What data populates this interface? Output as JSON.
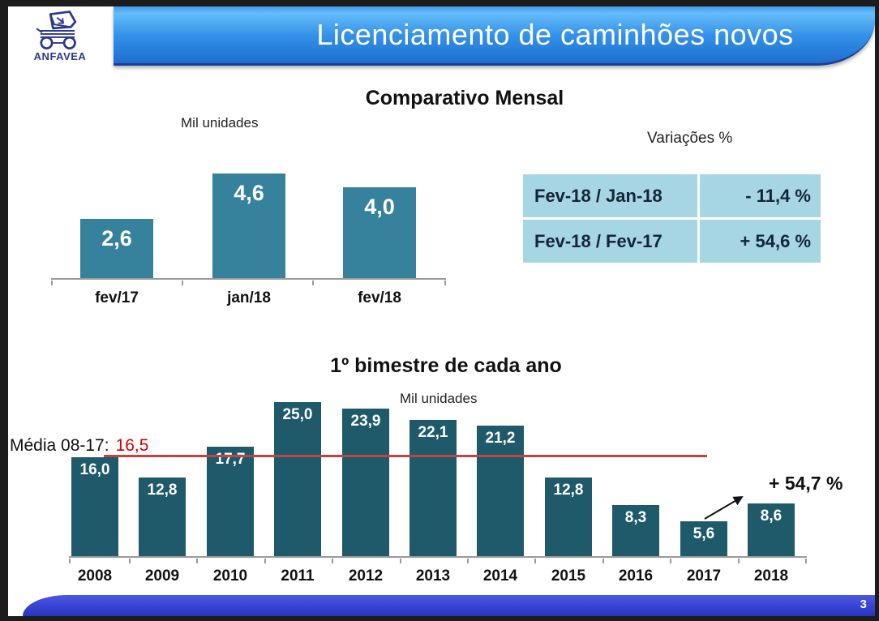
{
  "logo": {
    "name": "ANFAVEA"
  },
  "header": {
    "title": "Licenciamento de caminhões novos"
  },
  "monthly_section": {
    "title": "Comparativo Mensal",
    "units_label": "Mil unidades",
    "variations": {
      "title": "Variações %",
      "rows": [
        {
          "label": "Fev-18 / Jan-18",
          "value": "- 11,4 %"
        },
        {
          "label": "Fev-18 / Fev-17",
          "value": "+ 54,6 %"
        }
      ]
    }
  },
  "yearly_section": {
    "title": "1º bimestre de cada ano",
    "units_label": "Mil unidades",
    "average_label": "Média 08-17:",
    "average_value": "16,5",
    "growth_label": "+ 54,7 %"
  },
  "footer": {
    "page": "3"
  },
  "colors": {
    "header_blue": "#2E8AE4",
    "small_bar_teal": "#36829C",
    "big_bar_teal": "#1F5A6B",
    "table_cell_blue": "#A6D5E4",
    "average_line_red": "#C0443F",
    "average_value_red": "#CC0000",
    "footer_blue": "#3643D2"
  },
  "chart_data": [
    {
      "type": "bar",
      "title": "Comparativo Mensal",
      "ylabel": "Mil unidades",
      "categories": [
        "fev/17",
        "jan/18",
        "fev/18"
      ],
      "values": [
        2.6,
        4.6,
        4.0
      ],
      "data_labels": [
        "2,6",
        "4,6",
        "4,0"
      ],
      "bar_color": "#36829C",
      "ylim": [
        0,
        5
      ],
      "grid": false,
      "legend": false
    },
    {
      "type": "bar",
      "title": "1º bimestre de cada ano",
      "ylabel": "Mil unidades",
      "categories": [
        "2008",
        "2009",
        "2010",
        "2011",
        "2012",
        "2013",
        "2014",
        "2015",
        "2016",
        "2017",
        "2018"
      ],
      "values": [
        16.0,
        12.8,
        17.7,
        25.0,
        23.9,
        22.1,
        21.2,
        12.8,
        8.3,
        5.6,
        8.6
      ],
      "data_labels": [
        "16,0",
        "12,8",
        "17,7",
        "25,0",
        "23,9",
        "22,1",
        "21,2",
        "12,8",
        "8,3",
        "5,6",
        "8,6"
      ],
      "bar_color": "#1F5A6B",
      "ylim": [
        0,
        30
      ],
      "grid": false,
      "legend": false,
      "average_line": {
        "label": "Média 08-17:",
        "value": 16.5,
        "value_label": "16,5",
        "color": "#C0443F"
      },
      "annotation": {
        "text": "+ 54,7 %",
        "from_category": "2017",
        "to_category": "2018"
      }
    }
  ]
}
